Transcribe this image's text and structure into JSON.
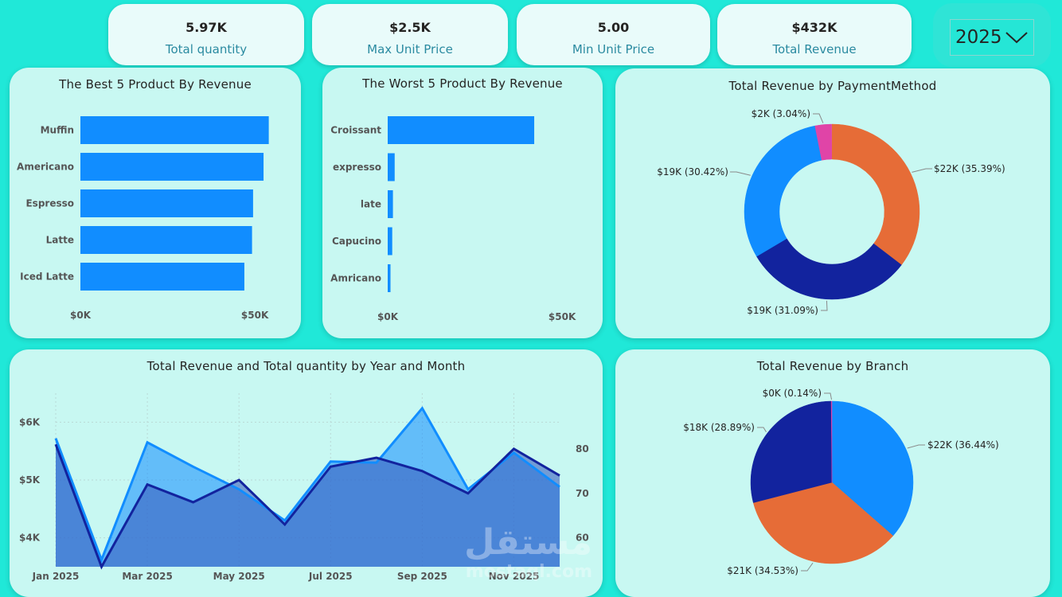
{
  "kpis": [
    {
      "value": "5.97K",
      "label": "Total quantity"
    },
    {
      "value": "$2.5K",
      "label": "Max Unit Price"
    },
    {
      "value": "5.00",
      "label": "Min Unit Price"
    },
    {
      "value": "$432K",
      "label": "Total Revenue"
    }
  ],
  "slicer": {
    "value": "2025",
    "icon": "chevron-down-icon"
  },
  "watermark": {
    "arabic": "مستقل",
    "latin": "mostaql.com"
  },
  "colors": {
    "background": "#20e8d8",
    "panel": "#c8f8f2",
    "bar": "#118dff",
    "navy": "#12239e",
    "orange": "#e66c37",
    "magenta": "#e044a7",
    "blue": "#118dff"
  },
  "chart_data": [
    {
      "type": "bar",
      "orientation": "horizontal",
      "title": "The Best 5 Product By Revenue",
      "categories": [
        "Muffin",
        "Americano",
        "Espresso",
        "Latte",
        "Iced Latte"
      ],
      "values": [
        54000,
        52500,
        49500,
        49200,
        47000
      ],
      "x_ticks": [
        "$0K",
        "$50K"
      ],
      "xlim": [
        0,
        55000
      ]
    },
    {
      "type": "bar",
      "orientation": "horizontal",
      "title": "The Worst 5 Product By Revenue",
      "categories": [
        "Croissant",
        "expresso",
        "late",
        "Capucino",
        "Amricano"
      ],
      "values": [
        42000,
        2000,
        1500,
        1300,
        800
      ],
      "x_ticks": [
        "$0K",
        "$50K"
      ],
      "xlim": [
        0,
        55000
      ]
    },
    {
      "type": "pie",
      "donut": true,
      "title": "Total Revenue by PaymentMethod",
      "slices": [
        {
          "label": "$22K (35.39%)",
          "percent": 35.39,
          "color": "#e66c37"
        },
        {
          "label": "$19K (31.09%)",
          "percent": 31.09,
          "color": "#12239e"
        },
        {
          "label": "$19K (30.42%)",
          "percent": 30.42,
          "color": "#118dff"
        },
        {
          "label": "$2K (3.04%)",
          "percent": 3.04,
          "color": "#e044a7"
        }
      ]
    },
    {
      "type": "area",
      "title": "Total Revenue and Total quantity by Year and Month",
      "x": [
        "Jan 2025",
        "Feb 2025",
        "Mar 2025",
        "Apr 2025",
        "May 2025",
        "Jun 2025",
        "Jul 2025",
        "Aug 2025",
        "Sep 2025",
        "Oct 2025",
        "Nov 2025",
        "Dec 2025"
      ],
      "x_tick_labels": [
        "Jan 2025",
        "Mar 2025",
        "May 2025",
        "Jul 2025",
        "Sep 2025",
        "Nov 2025"
      ],
      "y_ticks": [
        "$4K",
        "$5K",
        "$6K"
      ],
      "ylim": [
        3500,
        6500
      ],
      "y2_ticks": [
        "60",
        "70",
        "80"
      ],
      "y2lim": [
        53.5,
        92.5
      ],
      "series": [
        {
          "axis": "y",
          "color": "#118dff",
          "values": [
            5720,
            3620,
            5650,
            5230,
            4840,
            4300,
            5320,
            5300,
            6240,
            4840,
            5470,
            4880
          ]
        },
        {
          "axis": "y2",
          "color": "#12239e",
          "values": [
            81,
            53.5,
            72,
            68,
            73,
            63,
            76,
            78,
            75,
            70,
            80,
            74
          ]
        }
      ]
    },
    {
      "type": "pie",
      "title": "Total Revenue by Branch",
      "slices": [
        {
          "label": "$22K (36.44%)",
          "percent": 36.44,
          "color": "#118dff"
        },
        {
          "label": "$21K (34.53%)",
          "percent": 34.53,
          "color": "#e66c37"
        },
        {
          "label": "$18K (28.89%)",
          "percent": 28.89,
          "color": "#12239e"
        },
        {
          "label": "$0K (0.14%)",
          "percent": 0.14,
          "color": "#e044a7"
        }
      ]
    }
  ]
}
